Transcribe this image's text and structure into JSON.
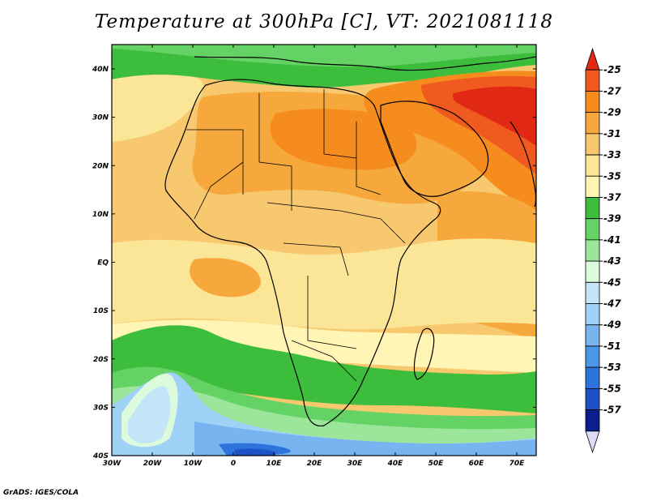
{
  "title": "Temperature at 300hPa [C], VT: 2021081118",
  "credit": "GrADS: IGES/COLA",
  "map": {
    "lat_labels": [
      "40N",
      "30N",
      "20N",
      "10N",
      "EQ",
      "10S",
      "20S",
      "30S",
      "40S"
    ],
    "lon_labels": [
      "30W",
      "20W",
      "10W",
      "0",
      "10E",
      "20E",
      "30E",
      "40E",
      "50E",
      "60E",
      "70E"
    ]
  },
  "colorbar": {
    "labels": [
      "-25",
      "-27",
      "-29",
      "-31",
      "-33",
      "-35",
      "-37",
      "-39",
      "-41",
      "-43",
      "-45",
      "-47",
      "-49",
      "-51",
      "-53",
      "-55",
      "-57"
    ],
    "colors": [
      "#e02814",
      "#f05a1e",
      "#f78c1e",
      "#f7a83c",
      "#f7c86e",
      "#fae696",
      "#fff5b4",
      "#3cbe3c",
      "#64d264",
      "#9be69b",
      "#dcfadc",
      "#c4e4f8",
      "#a0d2f8",
      "#78b4f0",
      "#4b96e6",
      "#2d73dc",
      "#1e50c8",
      "#0a1e8c",
      "#dcdcf8"
    ]
  },
  "colors": {
    "land_outline": "#000000",
    "frame": "#000000"
  }
}
